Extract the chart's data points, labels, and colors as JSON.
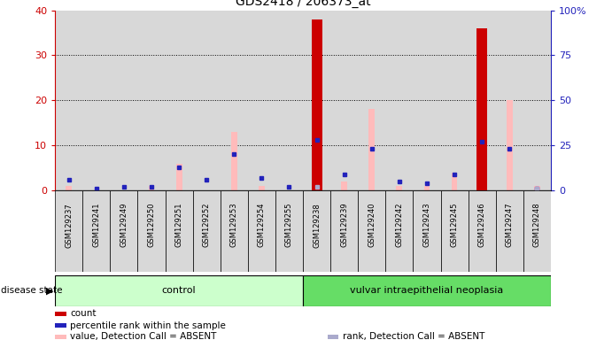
{
  "title": "GDS2418 / 206373_at",
  "samples": [
    "GSM129237",
    "GSM129241",
    "GSM129249",
    "GSM129250",
    "GSM129251",
    "GSM129252",
    "GSM129253",
    "GSM129254",
    "GSM129255",
    "GSM129238",
    "GSM129239",
    "GSM129240",
    "GSM129242",
    "GSM129243",
    "GSM129245",
    "GSM129246",
    "GSM129247",
    "GSM129248"
  ],
  "count_values": [
    0,
    0,
    0,
    0,
    0,
    0,
    0,
    0,
    0,
    38,
    0,
    0,
    0,
    0,
    0,
    36,
    0,
    0
  ],
  "percentile_values": [
    6,
    1,
    2,
    2,
    13,
    6,
    20,
    7,
    2,
    28,
    9,
    23,
    5,
    4,
    9,
    27,
    23,
    1
  ],
  "value_absent": [
    1,
    0,
    0,
    1,
    6,
    0,
    13,
    1,
    0,
    0,
    2,
    18,
    1,
    1,
    4,
    0,
    20,
    1
  ],
  "rank_absent_pct": [
    0,
    0,
    0,
    0,
    0,
    0,
    0,
    0,
    0,
    2,
    0,
    0,
    0,
    0,
    0,
    0,
    0,
    1
  ],
  "ylim_left": [
    0,
    40
  ],
  "ylim_right": [
    0,
    100
  ],
  "yticks_left": [
    0,
    10,
    20,
    30,
    40
  ],
  "yticks_right": [
    0,
    25,
    50,
    75,
    100
  ],
  "ytick_labels_right": [
    "0",
    "25",
    "50",
    "75",
    "100%"
  ],
  "count_color": "#cc0000",
  "percentile_color": "#2222bb",
  "value_absent_color": "#ffbbbb",
  "rank_absent_color": "#aaaacc",
  "control_color": "#ccffcc",
  "neoplasia_color": "#66dd66",
  "n_control": 9,
  "n_neoplasia": 9,
  "control_label": "control",
  "neoplasia_label": "vulvar intraepithelial neoplasia",
  "disease_state_label": "disease state"
}
